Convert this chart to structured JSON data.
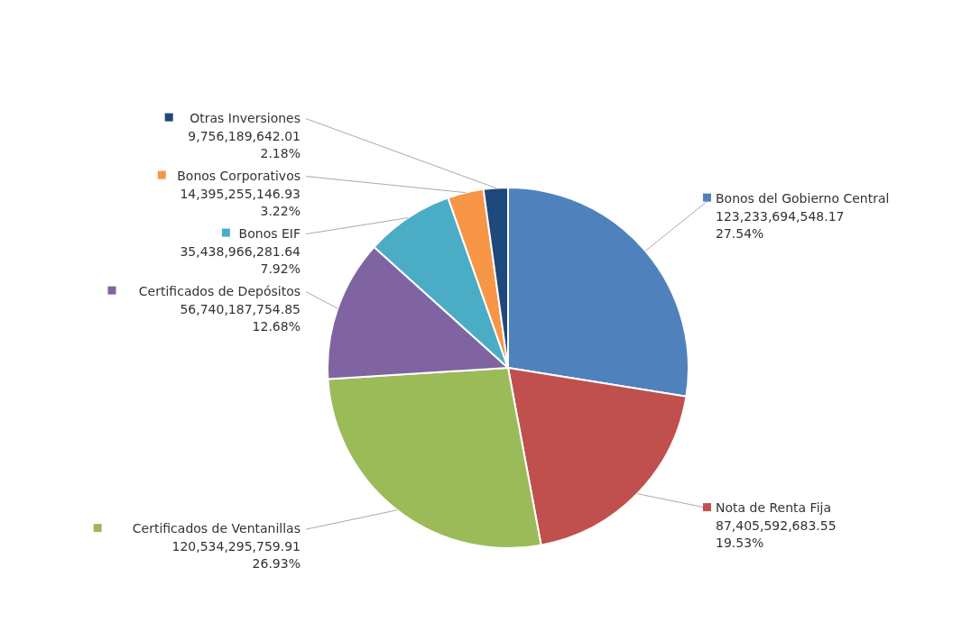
{
  "chart_data": {
    "type": "pie",
    "categories": [
      "Bonos del Gobierno Central",
      "Nota de Renta Fija",
      "Certificados de Ventanillas",
      "Certificados de Depósitos",
      "Bonos EIF",
      "Bonos Corporativos",
      "Otras Inversiones"
    ],
    "values": [
      123233694548.17,
      87405592683.55,
      120534295759.91,
      56740187754.85,
      35438966281.64,
      14395255146.93,
      9756189642.01
    ],
    "value_labels": [
      "123,233,694,548.17",
      "87,405,592,683.55",
      "120,534,295,759.91",
      "56,740,187,754.85",
      "35,438,966,281.64",
      "14,395,255,146.93",
      "9,756,189,642.01"
    ],
    "annotations": [
      "27.54%",
      "19.53%",
      "26.93%",
      "12.68%",
      "7.92%",
      "3.22%",
      "2.18%"
    ],
    "legend": "left",
    "colors": [
      "#4f81bd",
      "#c0504d",
      "#9bbb59",
      "#8064a2",
      "#4bacc6",
      "#f79646",
      "#1f497d"
    ]
  }
}
